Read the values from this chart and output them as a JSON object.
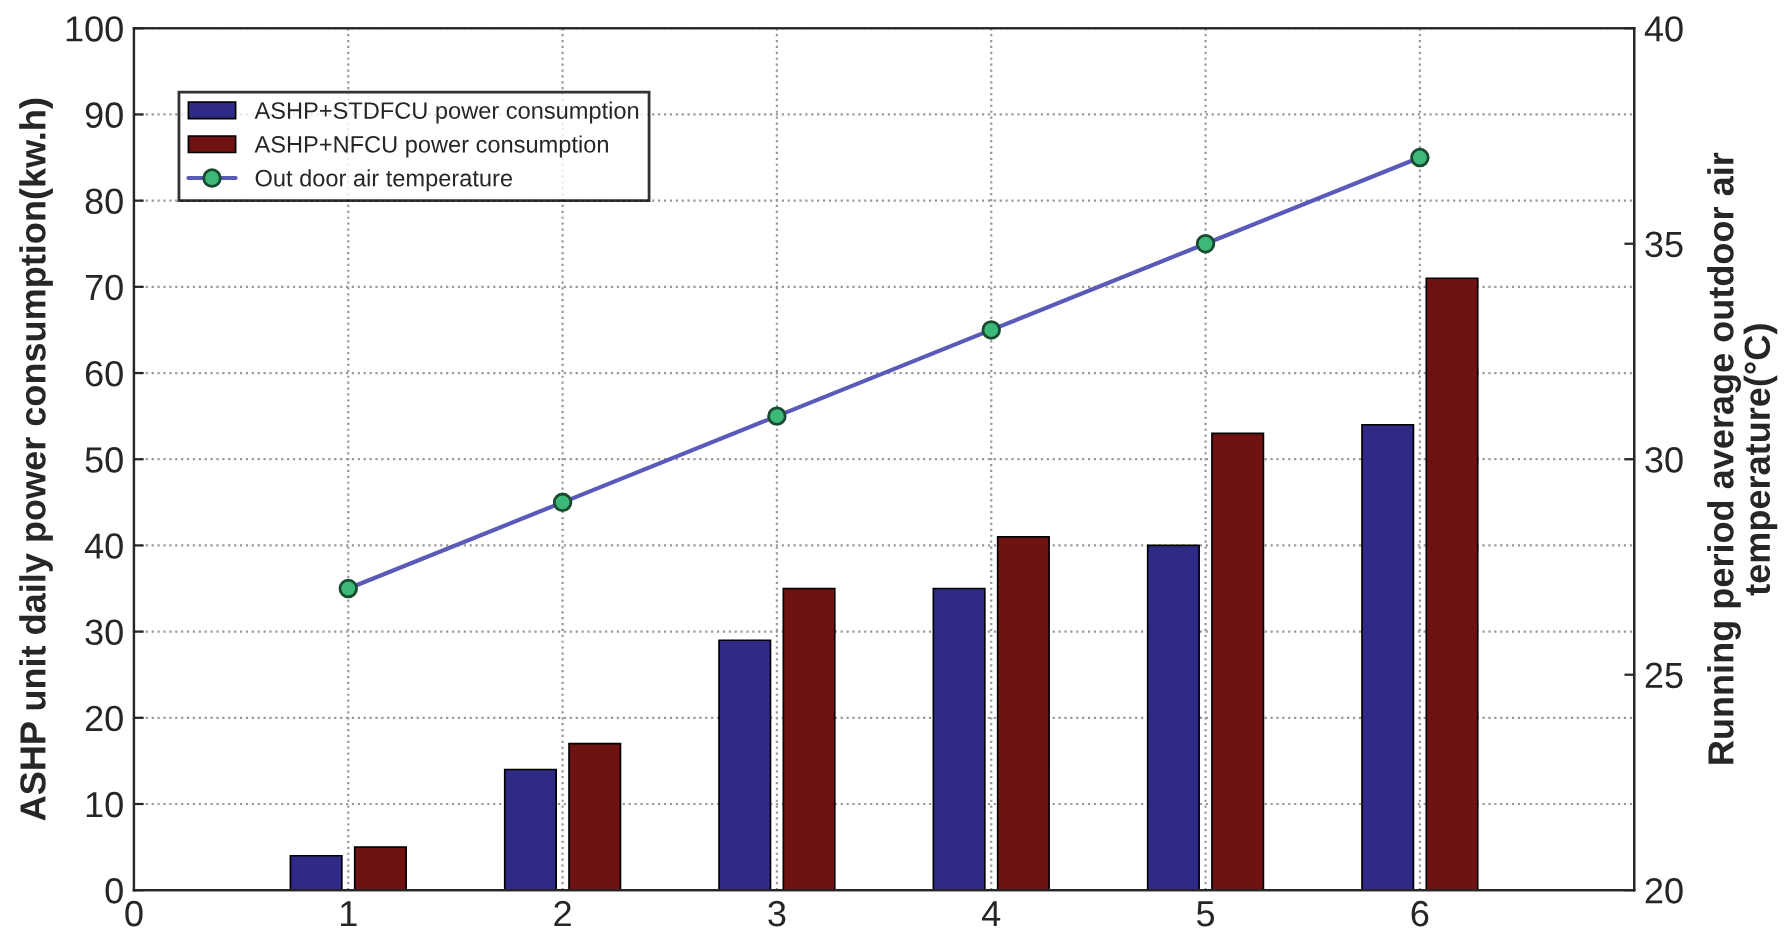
{
  "chart_data": {
    "type": "bar",
    "x": [
      1,
      2,
      3,
      4,
      5,
      6
    ],
    "series": [
      {
        "name": "ASHP+STDFCU power consumption",
        "color": "#2f2a86",
        "values": [
          4,
          14,
          29,
          35,
          40,
          54
        ]
      },
      {
        "name": "ASHP+NFCU power consumption",
        "color": "#6e1212",
        "values": [
          5,
          17,
          35,
          41,
          53,
          71
        ]
      },
      {
        "name": "Out door air temperature",
        "color": "#5a5ab8",
        "type": "line",
        "axis": "y2",
        "marker": "circle",
        "values": [
          27,
          29,
          31,
          33,
          35,
          37
        ]
      }
    ],
    "xlim": [
      0,
      7
    ],
    "xticks": [
      0,
      1,
      2,
      3,
      4,
      5,
      6
    ],
    "ylim": [
      0,
      100
    ],
    "yticks": [
      0,
      10,
      20,
      30,
      40,
      50,
      60,
      70,
      80,
      90,
      100
    ],
    "y2lim": [
      20,
      40
    ],
    "y2ticks": [
      20,
      25,
      30,
      35,
      40
    ],
    "ylabel": "ASHP unit daily power consumption(kw.h)",
    "y2label": "Running period average outdoor air\ntemperature(°C)",
    "grid": true,
    "legend": "top left"
  }
}
